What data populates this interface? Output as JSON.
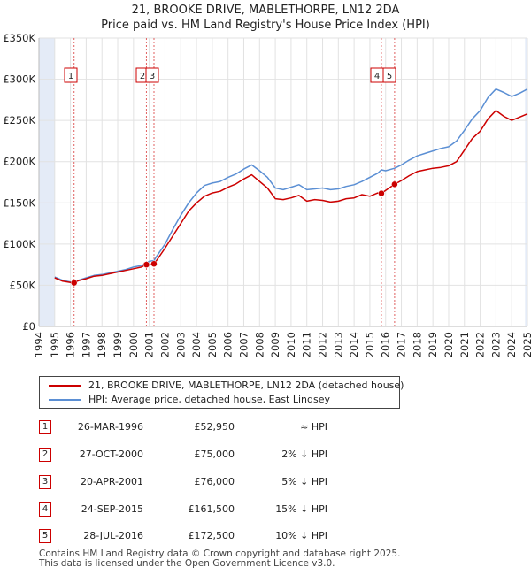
{
  "title_line1": "21, BROOKE DRIVE, MABLETHORPE, LN12 2DA",
  "title_line2": "Price paid vs. HM Land Registry's House Price Index (HPI)",
  "legend": {
    "property": "21, BROOKE DRIVE, MABLETHORPE, LN12 2DA (detached house)",
    "hpi": "HPI: Average price, detached house, East Lindsey"
  },
  "colors": {
    "property": "#cc0000",
    "hpi": "#5b8fd4",
    "band": "#e4ebf7",
    "grid": "#e2e2e2",
    "marker_line": "#e06060"
  },
  "sales": [
    {
      "num": "1",
      "date": "26-MAR-1996",
      "price": "£52,950",
      "hpi": "≈ HPI",
      "x": 1996.23,
      "y": 52950
    },
    {
      "num": "2",
      "date": "27-OCT-2000",
      "price": "£75,000",
      "hpi": "2% ↓ HPI",
      "x": 2000.82,
      "y": 75000
    },
    {
      "num": "3",
      "date": "20-APR-2001",
      "price": "£76,000",
      "hpi": "5% ↓ HPI",
      "x": 2001.3,
      "y": 76000
    },
    {
      "num": "4",
      "date": "24-SEP-2015",
      "price": "£161,500",
      "hpi": "15% ↓ HPI",
      "x": 2015.73,
      "y": 161500
    },
    {
      "num": "5",
      "date": "28-JUL-2016",
      "price": "£172,500",
      "hpi": "10% ↓ HPI",
      "x": 2016.57,
      "y": 172500
    }
  ],
  "footer_line1": "Contains HM Land Registry data © Crown copyright and database right 2025.",
  "footer_line2": "This data is licensed under the Open Government Licence v3.0.",
  "chart_data": {
    "type": "line",
    "title": "21, BROOKE DRIVE, MABLETHORPE, LN12 2DA",
    "subtitle": "Price paid vs. HM Land Registry's House Price Index (HPI)",
    "xlabel": "",
    "ylabel": "",
    "xlim": [
      1994,
      2025
    ],
    "ylim": [
      0,
      350000
    ],
    "x_ticks": [
      1994,
      1995,
      1996,
      1997,
      1998,
      1999,
      2000,
      2001,
      2002,
      2003,
      2004,
      2005,
      2006,
      2007,
      2008,
      2009,
      2010,
      2011,
      2012,
      2013,
      2014,
      2015,
      2016,
      2017,
      2018,
      2019,
      2020,
      2021,
      2022,
      2023,
      2024,
      2025
    ],
    "y_ticks": [
      {
        "v": 0,
        "label": "£0"
      },
      {
        "v": 50000,
        "label": "£50K"
      },
      {
        "v": 100000,
        "label": "£100K"
      },
      {
        "v": 150000,
        "label": "£150K"
      },
      {
        "v": 200000,
        "label": "£200K"
      },
      {
        "v": 250000,
        "label": "£250K"
      },
      {
        "v": 300000,
        "label": "£300K"
      },
      {
        "v": 350000,
        "label": "£350K"
      }
    ],
    "grid": true,
    "legend_position": "below",
    "series": [
      {
        "name": "HPI: Average price, detached house, East Lindsey",
        "x": [
          1995.0,
          1995.5,
          1996.0,
          1996.23,
          1996.5,
          1997.0,
          1997.5,
          1998.0,
          1998.5,
          1999.0,
          1999.5,
          2000.0,
          2000.5,
          2000.82,
          2001.0,
          2001.3,
          2001.5,
          2002.0,
          2002.5,
          2003.0,
          2003.5,
          2004.0,
          2004.5,
          2005.0,
          2005.5,
          2006.0,
          2006.5,
          2007.0,
          2007.5,
          2008.0,
          2008.5,
          2009.0,
          2009.5,
          2010.0,
          2010.5,
          2011.0,
          2011.5,
          2012.0,
          2012.5,
          2013.0,
          2013.5,
          2014.0,
          2014.5,
          2015.0,
          2015.5,
          2015.73,
          2016.0,
          2016.57,
          2017.0,
          2017.5,
          2018.0,
          2018.5,
          2019.0,
          2019.5,
          2020.0,
          2020.5,
          2021.0,
          2021.5,
          2022.0,
          2022.5,
          2023.0,
          2023.5,
          2024.0,
          2024.5,
          2025.0
        ],
        "y": [
          60000,
          56000,
          54000,
          53000,
          56000,
          59000,
          62000,
          63000,
          65000,
          67000,
          69000,
          72000,
          74000,
          76500,
          79000,
          80000,
          86000,
          100000,
          118000,
          135000,
          150000,
          162000,
          171000,
          174000,
          176000,
          181000,
          185000,
          191000,
          196000,
          189000,
          181000,
          168000,
          166000,
          169000,
          172000,
          166000,
          167000,
          168000,
          166000,
          167000,
          170000,
          172000,
          176000,
          181000,
          186000,
          190000,
          189000,
          192000,
          196000,
          202000,
          207000,
          210000,
          213000,
          216000,
          218000,
          225000,
          238000,
          252000,
          262000,
          278000,
          288000,
          284000,
          279000,
          283000,
          288000
        ]
      },
      {
        "name": "21, BROOKE DRIVE, MABLETHORPE, LN12 2DA (detached house)",
        "x": [
          1995.0,
          1995.5,
          1996.0,
          1996.23,
          1996.5,
          1997.0,
          1997.5,
          1998.0,
          1998.5,
          1999.0,
          1999.5,
          2000.0,
          2000.5,
          2000.82,
          2001.0,
          2001.3,
          2001.5,
          2002.0,
          2002.5,
          2003.0,
          2003.5,
          2004.0,
          2004.5,
          2005.0,
          2005.5,
          2006.0,
          2006.5,
          2007.0,
          2007.5,
          2008.0,
          2008.5,
          2009.0,
          2009.5,
          2010.0,
          2010.5,
          2011.0,
          2011.5,
          2012.0,
          2012.5,
          2013.0,
          2013.5,
          2014.0,
          2014.5,
          2015.0,
          2015.5,
          2015.73,
          2016.0,
          2016.57,
          2017.0,
          2017.5,
          2018.0,
          2018.5,
          2019.0,
          2019.5,
          2020.0,
          2020.5,
          2021.0,
          2021.5,
          2022.0,
          2022.5,
          2023.0,
          2023.5,
          2024.0,
          2024.5,
          2025.0
        ],
        "y": [
          59000,
          55000,
          53500,
          52950,
          55500,
          58000,
          61000,
          62000,
          64000,
          66000,
          68000,
          70000,
          72000,
          75000,
          75500,
          76000,
          81000,
          95000,
          110000,
          125000,
          140000,
          150000,
          158000,
          162000,
          164000,
          169000,
          173000,
          179000,
          184000,
          176000,
          168000,
          155000,
          154000,
          156000,
          159000,
          152000,
          154000,
          153000,
          151000,
          152000,
          155000,
          156000,
          160000,
          158000,
          162000,
          161500,
          165000,
          172500,
          177000,
          183000,
          188000,
          190000,
          192000,
          193000,
          195000,
          200000,
          214000,
          228000,
          237000,
          252000,
          262000,
          255000,
          250000,
          254000,
          258000
        ]
      }
    ],
    "sale_markers": [
      {
        "label": "1",
        "x": 1996.23,
        "y": 52950
      },
      {
        "label": "2",
        "x": 2000.82,
        "y": 75000
      },
      {
        "label": "3",
        "x": 2001.3,
        "y": 76000
      },
      {
        "label": "4",
        "x": 2015.73,
        "y": 161500
      },
      {
        "label": "5",
        "x": 2016.57,
        "y": 172500
      }
    ]
  }
}
